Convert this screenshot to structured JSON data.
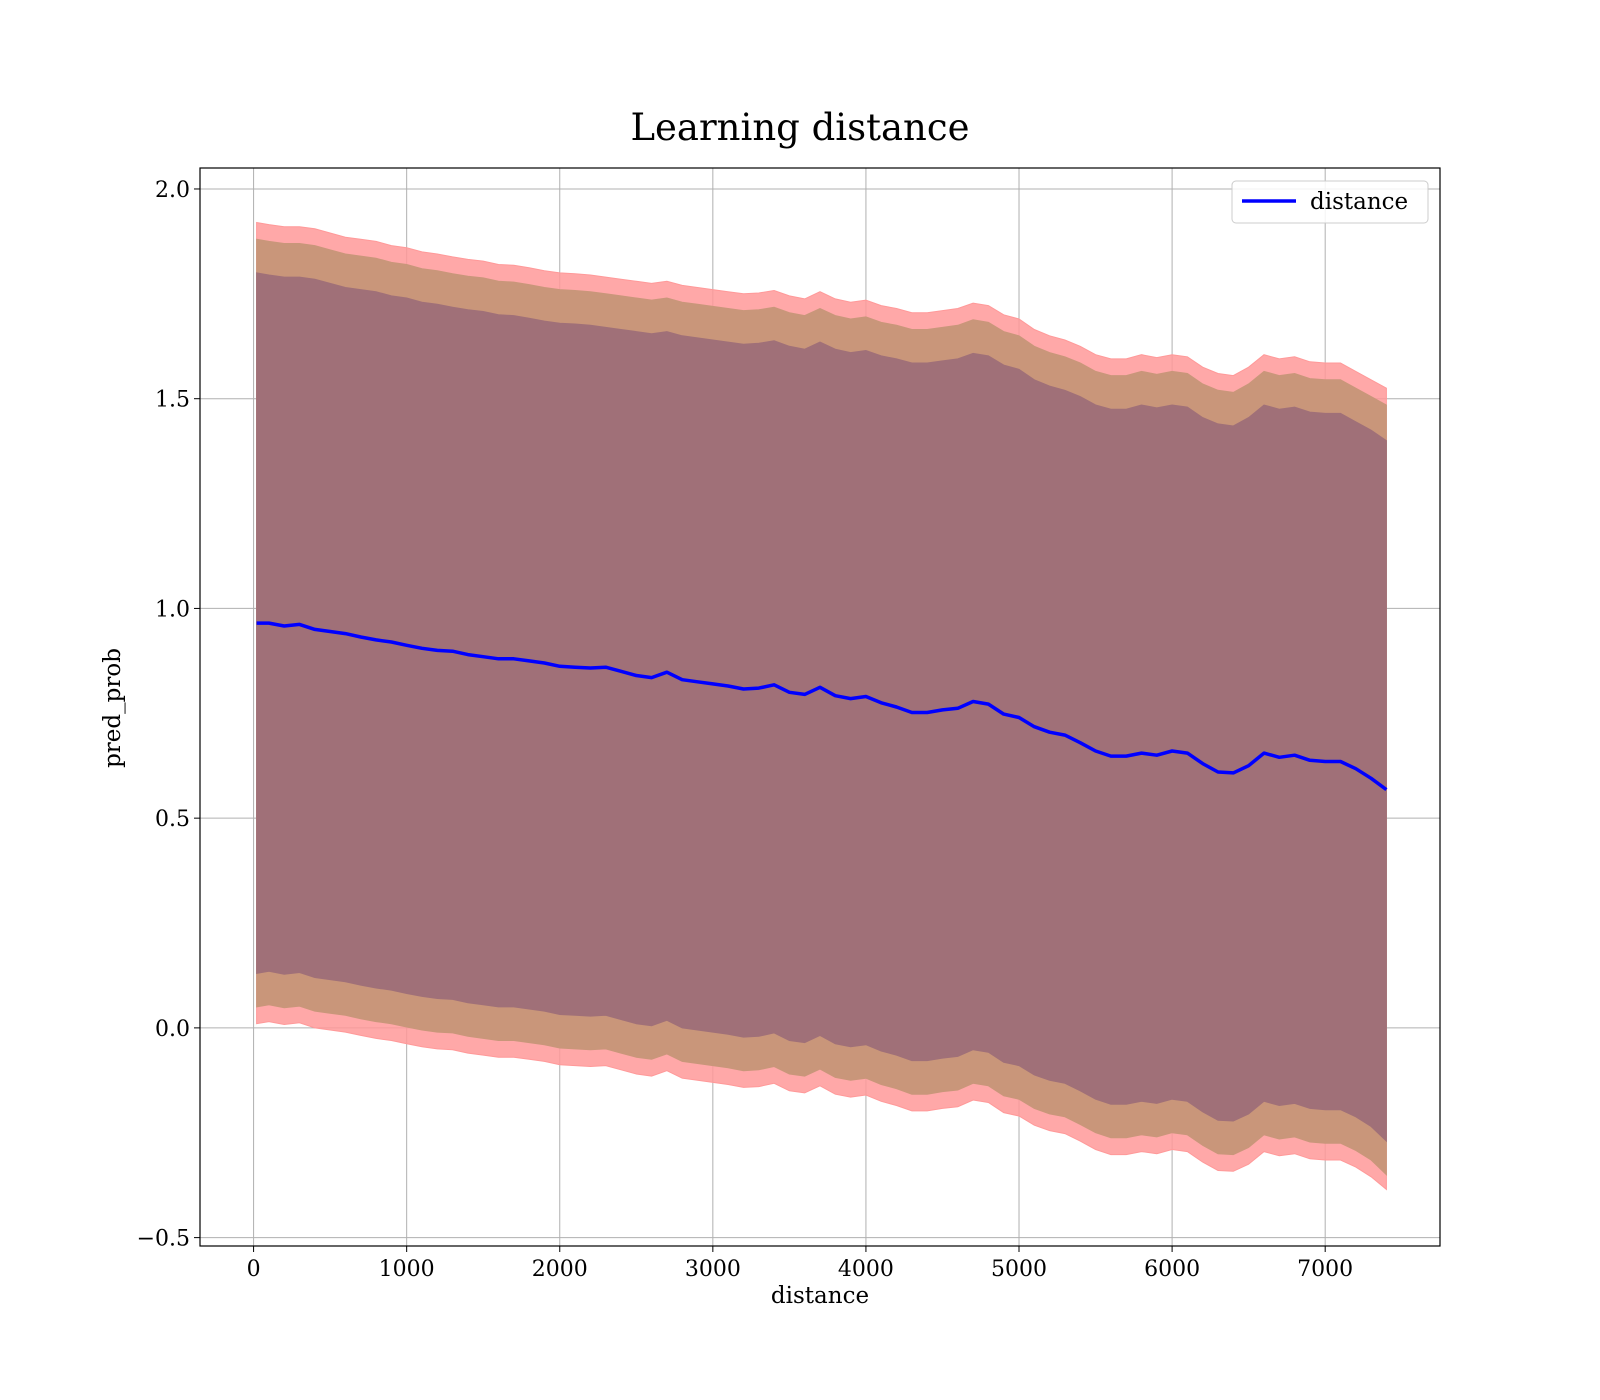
{
  "chart_data": {
    "type": "line",
    "title": "Learning distance",
    "xlabel": "distance",
    "ylabel": "pred_prob",
    "xlim": [
      -350,
      7750
    ],
    "ylim": [
      -0.52,
      2.05
    ],
    "xticks": [
      0,
      1000,
      2000,
      3000,
      4000,
      5000,
      6000,
      7000
    ],
    "yticks": [
      -0.5,
      0.0,
      0.5,
      1.0,
      1.5,
      2.0
    ],
    "xtick_labels": [
      "0",
      "1000",
      "2000",
      "3000",
      "4000",
      "5000",
      "6000",
      "7000"
    ],
    "ytick_labels": [
      "−0.5",
      "0.0",
      "0.5",
      "1.0",
      "1.5",
      "2.0"
    ],
    "grid": true,
    "legend": {
      "placement": "top-right",
      "entries": [
        "distance"
      ]
    },
    "colors": {
      "line": "#0000ff",
      "band_outer": "#ff9999",
      "band_middle": "#c9967a",
      "band_inner": "#a07078",
      "grid": "#b0b0b0"
    },
    "x": [
      20,
      100,
      200,
      300,
      400,
      500,
      600,
      700,
      800,
      900,
      1000,
      1100,
      1200,
      1300,
      1400,
      1500,
      1600,
      1700,
      1800,
      1900,
      2000,
      2100,
      2200,
      2300,
      2400,
      2500,
      2600,
      2700,
      2800,
      2900,
      3000,
      3100,
      3200,
      3300,
      3400,
      3500,
      3600,
      3700,
      3800,
      3900,
      4000,
      4100,
      4200,
      4300,
      4400,
      4500,
      4600,
      4700,
      4800,
      4900,
      5000,
      5100,
      5200,
      5300,
      5400,
      5500,
      5600,
      5700,
      5800,
      5900,
      6000,
      6100,
      6200,
      6300,
      6400,
      6500,
      6600,
      6700,
      6800,
      6900,
      7000,
      7100,
      7200,
      7300,
      7400
    ],
    "series": [
      {
        "name": "distance",
        "values": [
          0.965,
          0.965,
          0.958,
          0.962,
          0.95,
          0.945,
          0.94,
          0.932,
          0.925,
          0.92,
          0.912,
          0.905,
          0.9,
          0.898,
          0.89,
          0.885,
          0.88,
          0.88,
          0.875,
          0.87,
          0.862,
          0.86,
          0.858,
          0.86,
          0.85,
          0.84,
          0.835,
          0.848,
          0.83,
          0.825,
          0.82,
          0.815,
          0.808,
          0.81,
          0.818,
          0.8,
          0.795,
          0.812,
          0.792,
          0.785,
          0.79,
          0.775,
          0.765,
          0.752,
          0.752,
          0.758,
          0.762,
          0.778,
          0.772,
          0.748,
          0.74,
          0.718,
          0.705,
          0.698,
          0.68,
          0.66,
          0.648,
          0.648,
          0.655,
          0.65,
          0.66,
          0.655,
          0.63,
          0.61,
          0.608,
          0.625,
          0.655,
          0.645,
          0.65,
          0.638,
          0.635,
          0.635,
          0.618,
          0.595,
          0.568
        ]
      }
    ],
    "bands": {
      "outer": {
        "upper": [
          1.92,
          1.915,
          1.91,
          1.91,
          1.905,
          1.895,
          1.885,
          1.88,
          1.875,
          1.865,
          1.86,
          1.85,
          1.845,
          1.838,
          1.832,
          1.828,
          1.82,
          1.818,
          1.812,
          1.805,
          1.8,
          1.798,
          1.795,
          1.79,
          1.785,
          1.78,
          1.775,
          1.78,
          1.77,
          1.765,
          1.76,
          1.755,
          1.75,
          1.752,
          1.758,
          1.745,
          1.738,
          1.755,
          1.738,
          1.73,
          1.735,
          1.722,
          1.715,
          1.705,
          1.705,
          1.71,
          1.715,
          1.728,
          1.722,
          1.7,
          1.69,
          1.665,
          1.65,
          1.64,
          1.625,
          1.605,
          1.595,
          1.595,
          1.605,
          1.598,
          1.605,
          1.6,
          1.575,
          1.56,
          1.555,
          1.575,
          1.605,
          1.595,
          1.6,
          1.588,
          1.585,
          1.585,
          1.565,
          1.545,
          1.525
        ],
        "lower": [
          0.01,
          0.015,
          0.008,
          0.012,
          0.0,
          -0.005,
          -0.01,
          -0.018,
          -0.025,
          -0.03,
          -0.038,
          -0.045,
          -0.05,
          -0.052,
          -0.06,
          -0.065,
          -0.07,
          -0.07,
          -0.075,
          -0.08,
          -0.088,
          -0.09,
          -0.092,
          -0.09,
          -0.1,
          -0.11,
          -0.115,
          -0.102,
          -0.12,
          -0.125,
          -0.13,
          -0.135,
          -0.142,
          -0.14,
          -0.132,
          -0.15,
          -0.155,
          -0.138,
          -0.158,
          -0.165,
          -0.16,
          -0.175,
          -0.185,
          -0.198,
          -0.198,
          -0.192,
          -0.188,
          -0.172,
          -0.178,
          -0.202,
          -0.21,
          -0.232,
          -0.245,
          -0.252,
          -0.27,
          -0.29,
          -0.302,
          -0.302,
          -0.295,
          -0.3,
          -0.29,
          -0.295,
          -0.32,
          -0.34,
          -0.342,
          -0.325,
          -0.295,
          -0.305,
          -0.3,
          -0.312,
          -0.315,
          -0.315,
          -0.332,
          -0.355,
          -0.385
        ]
      },
      "middle": {
        "upper": [
          1.88,
          1.875,
          1.87,
          1.87,
          1.865,
          1.855,
          1.845,
          1.84,
          1.835,
          1.825,
          1.82,
          1.81,
          1.805,
          1.798,
          1.792,
          1.788,
          1.78,
          1.778,
          1.772,
          1.765,
          1.76,
          1.758,
          1.755,
          1.75,
          1.745,
          1.74,
          1.735,
          1.74,
          1.73,
          1.725,
          1.72,
          1.715,
          1.71,
          1.712,
          1.718,
          1.705,
          1.698,
          1.715,
          1.698,
          1.69,
          1.695,
          1.682,
          1.675,
          1.665,
          1.665,
          1.67,
          1.675,
          1.688,
          1.682,
          1.66,
          1.65,
          1.625,
          1.61,
          1.6,
          1.585,
          1.565,
          1.555,
          1.555,
          1.565,
          1.558,
          1.565,
          1.56,
          1.535,
          1.52,
          1.515,
          1.535,
          1.565,
          1.555,
          1.56,
          1.548,
          1.545,
          1.545,
          1.525,
          1.505,
          1.485
        ],
        "lower": [
          0.05,
          0.055,
          0.048,
          0.052,
          0.04,
          0.035,
          0.03,
          0.022,
          0.015,
          0.01,
          0.002,
          -0.005,
          -0.01,
          -0.012,
          -0.02,
          -0.025,
          -0.03,
          -0.03,
          -0.035,
          -0.04,
          -0.048,
          -0.05,
          -0.052,
          -0.05,
          -0.06,
          -0.07,
          -0.075,
          -0.062,
          -0.08,
          -0.085,
          -0.09,
          -0.095,
          -0.102,
          -0.1,
          -0.092,
          -0.11,
          -0.115,
          -0.098,
          -0.118,
          -0.125,
          -0.12,
          -0.135,
          -0.145,
          -0.158,
          -0.158,
          -0.152,
          -0.148,
          -0.132,
          -0.138,
          -0.162,
          -0.17,
          -0.192,
          -0.205,
          -0.212,
          -0.23,
          -0.25,
          -0.262,
          -0.262,
          -0.255,
          -0.26,
          -0.25,
          -0.255,
          -0.28,
          -0.3,
          -0.302,
          -0.285,
          -0.255,
          -0.265,
          -0.26,
          -0.272,
          -0.275,
          -0.275,
          -0.292,
          -0.315,
          -0.35
        ]
      },
      "inner": {
        "upper": [
          1.8,
          1.795,
          1.79,
          1.79,
          1.785,
          1.775,
          1.765,
          1.76,
          1.755,
          1.745,
          1.74,
          1.73,
          1.725,
          1.718,
          1.712,
          1.708,
          1.7,
          1.698,
          1.692,
          1.685,
          1.68,
          1.678,
          1.675,
          1.67,
          1.665,
          1.66,
          1.655,
          1.66,
          1.65,
          1.645,
          1.64,
          1.635,
          1.63,
          1.632,
          1.638,
          1.625,
          1.618,
          1.635,
          1.618,
          1.61,
          1.615,
          1.602,
          1.595,
          1.585,
          1.585,
          1.59,
          1.595,
          1.608,
          1.602,
          1.58,
          1.57,
          1.545,
          1.53,
          1.52,
          1.505,
          1.485,
          1.475,
          1.475,
          1.485,
          1.478,
          1.485,
          1.48,
          1.455,
          1.44,
          1.435,
          1.455,
          1.485,
          1.475,
          1.48,
          1.468,
          1.465,
          1.465,
          1.445,
          1.425,
          1.4
        ],
        "lower": [
          0.13,
          0.135,
          0.128,
          0.132,
          0.12,
          0.115,
          0.11,
          0.102,
          0.095,
          0.09,
          0.082,
          0.075,
          0.07,
          0.068,
          0.06,
          0.055,
          0.05,
          0.05,
          0.045,
          0.04,
          0.032,
          0.03,
          0.028,
          0.03,
          0.02,
          0.01,
          0.005,
          0.018,
          0.0,
          -0.005,
          -0.01,
          -0.015,
          -0.022,
          -0.02,
          -0.012,
          -0.03,
          -0.035,
          -0.018,
          -0.038,
          -0.045,
          -0.04,
          -0.055,
          -0.065,
          -0.078,
          -0.078,
          -0.072,
          -0.068,
          -0.052,
          -0.058,
          -0.082,
          -0.09,
          -0.112,
          -0.125,
          -0.132,
          -0.15,
          -0.17,
          -0.182,
          -0.182,
          -0.175,
          -0.18,
          -0.17,
          -0.175,
          -0.2,
          -0.22,
          -0.222,
          -0.205,
          -0.175,
          -0.185,
          -0.18,
          -0.192,
          -0.195,
          -0.195,
          -0.212,
          -0.235,
          -0.27
        ]
      }
    }
  }
}
